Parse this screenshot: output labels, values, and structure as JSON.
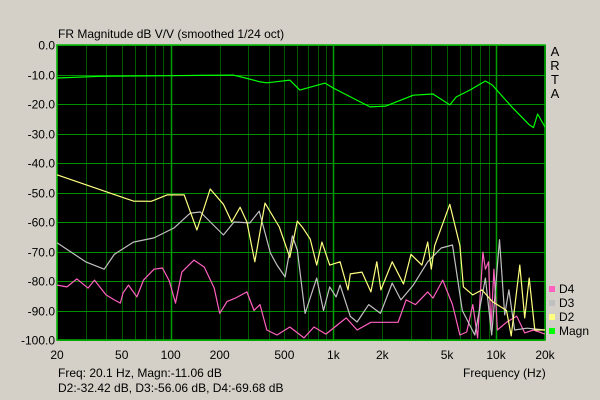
{
  "chart_data": {
    "type": "line",
    "title": "FR Magnitude dB V/V (smoothed 1/24 oct)",
    "xlabel": "Frequency (Hz)",
    "ylabel": "",
    "xscale": "log",
    "xlim": [
      20,
      20000
    ],
    "ylim": [
      -100,
      0
    ],
    "grid": true,
    "legend_position": "bottom-right",
    "background": "#000000",
    "xticks": [
      20,
      50,
      100,
      200,
      500,
      1000,
      2000,
      5000,
      10000,
      20000
    ],
    "xtick_labels": [
      "20",
      "50",
      "100",
      "200",
      "500",
      "1k",
      "2k",
      "5k",
      "10k",
      "20k"
    ],
    "yticks": [
      0,
      -10,
      -20,
      -30,
      -40,
      -50,
      -60,
      -70,
      -80,
      -90,
      -100
    ],
    "ytick_labels": [
      "0.0",
      "-10.0",
      "-20.0",
      "-30.0",
      "-40.0",
      "-50.0",
      "-60.0",
      "-70.0",
      "-80.0",
      "-90.0",
      "-100.0"
    ],
    "series": [
      {
        "name": "Magn",
        "color": "#00ff00",
        "points": [
          [
            20,
            -11.2
          ],
          [
            37,
            -10.6
          ],
          [
            100,
            -10.4
          ],
          [
            151,
            -10.3
          ],
          [
            242,
            -10.2
          ],
          [
            280,
            -11
          ],
          [
            355,
            -12.5
          ],
          [
            390,
            -12.8
          ],
          [
            470,
            -12.3
          ],
          [
            540,
            -11.9
          ],
          [
            622,
            -15.3
          ],
          [
            890,
            -12.9
          ],
          [
            1000,
            -14.6
          ],
          [
            1680,
            -21
          ],
          [
            2100,
            -20.7
          ],
          [
            3100,
            -17
          ],
          [
            4100,
            -16.6
          ],
          [
            5200,
            -20.3
          ],
          [
            5700,
            -17.6
          ],
          [
            6900,
            -15.3
          ],
          [
            8600,
            -12.2
          ],
          [
            9500,
            -13.6
          ],
          [
            11000,
            -17.6
          ],
          [
            12700,
            -21.4
          ],
          [
            16000,
            -27
          ],
          [
            17000,
            -28
          ],
          [
            18000,
            -23.4
          ],
          [
            20000,
            -27.8
          ]
        ]
      },
      {
        "name": "D2",
        "color": "#ffff80",
        "points": [
          [
            20,
            -44
          ],
          [
            59,
            -52.9
          ],
          [
            76,
            -53
          ],
          [
            95,
            -50.8
          ],
          [
            121,
            -50.8
          ],
          [
            145,
            -62.7
          ],
          [
            175,
            -48.8
          ],
          [
            211,
            -54
          ],
          [
            237,
            -60
          ],
          [
            267,
            -55
          ],
          [
            294,
            -60
          ],
          [
            329,
            -73.5
          ],
          [
            380,
            -53.6
          ],
          [
            465,
            -61.7
          ],
          [
            540,
            -72
          ],
          [
            600,
            -59.7
          ],
          [
            650,
            -62
          ],
          [
            720,
            -65.8
          ],
          [
            790,
            -74.6
          ],
          [
            850,
            -66.8
          ],
          [
            950,
            -74.6
          ],
          [
            1100,
            -73.5
          ],
          [
            1230,
            -83
          ],
          [
            1270,
            -77.6
          ],
          [
            1500,
            -77
          ],
          [
            1700,
            -83.7
          ],
          [
            1850,
            -73.5
          ],
          [
            1960,
            -83
          ],
          [
            2300,
            -73.5
          ],
          [
            2700,
            -81
          ],
          [
            3000,
            -71
          ],
          [
            3500,
            -74.6
          ],
          [
            3800,
            -66.8
          ],
          [
            4000,
            -76
          ],
          [
            4200,
            -68
          ],
          [
            4600,
            -62
          ],
          [
            5200,
            -54
          ],
          [
            6000,
            -68
          ],
          [
            6300,
            -82
          ],
          [
            7200,
            -84.7
          ],
          [
            8200,
            -83
          ],
          [
            9500,
            -87
          ],
          [
            11600,
            -90
          ],
          [
            12400,
            -98.6
          ],
          [
            14000,
            -74.6
          ],
          [
            15000,
            -92.5
          ],
          [
            16000,
            -79
          ],
          [
            17300,
            -96.6
          ],
          [
            20000,
            -96.6
          ]
        ]
      },
      {
        "name": "D3",
        "color": "#c0c0c0",
        "points": [
          [
            20,
            -67
          ],
          [
            30,
            -73.5
          ],
          [
            39,
            -76
          ],
          [
            45,
            -71
          ],
          [
            59,
            -66.8
          ],
          [
            79,
            -65.4
          ],
          [
            105,
            -62
          ],
          [
            132,
            -57
          ],
          [
            152,
            -56.6
          ],
          [
            211,
            -64.4
          ],
          [
            245,
            -60
          ],
          [
            307,
            -60.3
          ],
          [
            350,
            -56.3
          ],
          [
            410,
            -70.5
          ],
          [
            450,
            -74.6
          ],
          [
            505,
            -78.6
          ],
          [
            560,
            -64.7
          ],
          [
            600,
            -69.5
          ],
          [
            670,
            -91
          ],
          [
            790,
            -79
          ],
          [
            870,
            -90
          ],
          [
            950,
            -82
          ],
          [
            1040,
            -85.4
          ],
          [
            1100,
            -81.4
          ],
          [
            1270,
            -92
          ],
          [
            1400,
            -93.9
          ],
          [
            1650,
            -88
          ],
          [
            1950,
            -91
          ],
          [
            2300,
            -80.7
          ],
          [
            2600,
            -86.4
          ],
          [
            3100,
            -81.4
          ],
          [
            3800,
            -73.5
          ],
          [
            4600,
            -68.8
          ],
          [
            5400,
            -67.8
          ],
          [
            6200,
            -90
          ],
          [
            7400,
            -98.3
          ],
          [
            8600,
            -79
          ],
          [
            9400,
            -98.3
          ],
          [
            10500,
            -66
          ],
          [
            11300,
            -91.5
          ],
          [
            12000,
            -83
          ],
          [
            13000,
            -96.6
          ],
          [
            15500,
            -96
          ],
          [
            20000,
            -96.6
          ]
        ]
      },
      {
        "name": "D4",
        "color": "#ff60c0",
        "points": [
          [
            20,
            -81.4
          ],
          [
            23,
            -82
          ],
          [
            26.5,
            -79.3
          ],
          [
            31,
            -82.4
          ],
          [
            34,
            -79.7
          ],
          [
            40,
            -84.7
          ],
          [
            45,
            -86.4
          ],
          [
            49,
            -87.5
          ],
          [
            51,
            -84
          ],
          [
            55,
            -81.4
          ],
          [
            62,
            -85.4
          ],
          [
            68,
            -79.7
          ],
          [
            79,
            -76
          ],
          [
            89,
            -75.6
          ],
          [
            98,
            -80
          ],
          [
            107,
            -87.5
          ],
          [
            117,
            -77
          ],
          [
            139,
            -72.9
          ],
          [
            161,
            -75.3
          ],
          [
            185,
            -82.4
          ],
          [
            200,
            -91
          ],
          [
            222,
            -87
          ],
          [
            250,
            -85.8
          ],
          [
            294,
            -83.7
          ],
          [
            325,
            -90
          ],
          [
            354,
            -88
          ],
          [
            390,
            -96.6
          ],
          [
            450,
            -98.3
          ],
          [
            540,
            -95.6
          ],
          [
            660,
            -99.3
          ],
          [
            760,
            -95.6
          ],
          [
            900,
            -98
          ],
          [
            1200,
            -92.5
          ],
          [
            1400,
            -96.6
          ],
          [
            1700,
            -94
          ],
          [
            2100,
            -94
          ],
          [
            2500,
            -94
          ],
          [
            2800,
            -86.4
          ],
          [
            3200,
            -88
          ],
          [
            3800,
            -83.7
          ],
          [
            4100,
            -85.8
          ],
          [
            4700,
            -79.7
          ],
          [
            5400,
            -88
          ],
          [
            6000,
            -98.3
          ],
          [
            6600,
            -97.3
          ],
          [
            7200,
            -88
          ],
          [
            7700,
            -99.3
          ],
          [
            8300,
            -70.2
          ],
          [
            8600,
            -76
          ],
          [
            9000,
            -73.5
          ],
          [
            9300,
            -96.6
          ],
          [
            9700,
            -76
          ],
          [
            10200,
            -96.6
          ],
          [
            11600,
            -94
          ],
          [
            13400,
            -91.9
          ],
          [
            15000,
            -97.6
          ],
          [
            17000,
            -96.6
          ],
          [
            20000,
            -98
          ]
        ]
      }
    ]
  },
  "side_label": [
    "A",
    "R",
    "T",
    "A"
  ],
  "legend": [
    {
      "label": "D4",
      "color": "#ff60c0"
    },
    {
      "label": "D3",
      "color": "#c0c0c0"
    },
    {
      "label": "D2",
      "color": "#ffff80"
    },
    {
      "label": "Magn",
      "color": "#00ff00"
    }
  ],
  "status": {
    "line1": "Freq: 20.1 Hz, Magn:-11.06 dB",
    "line2": "D2:-32.42 dB, D3:-56.06 dB, D4:-69.68 dB"
  }
}
